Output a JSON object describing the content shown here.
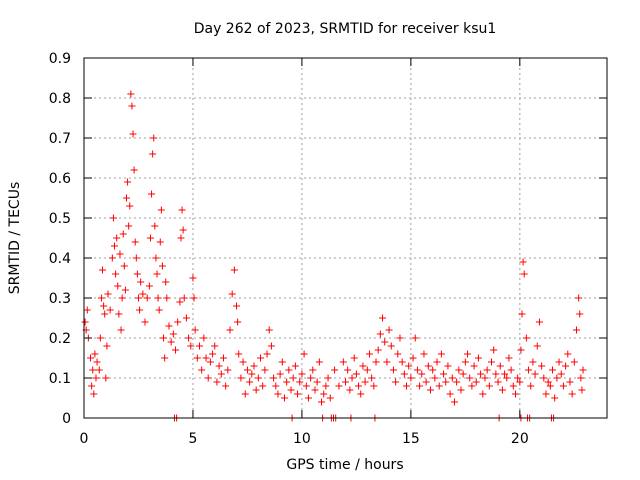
{
  "chart_data": {
    "type": "scatter",
    "title": "Day 262 of 2023, SRMTID for receiver ksu1",
    "xlabel": "GPS time / hours",
    "ylabel": "SRMTID / TECUs",
    "xlim": [
      0,
      24
    ],
    "ylim": [
      0,
      0.9
    ],
    "xticks": [
      0,
      5,
      10,
      15,
      20
    ],
    "yticks": [
      0,
      0.1,
      0.2,
      0.3,
      0.4,
      0.5,
      0.6,
      0.7,
      0.8,
      0.9
    ],
    "grid": true,
    "marker": "+",
    "color": "#ff0000",
    "series": [
      {
        "name": "SRMTID",
        "points": [
          [
            0.05,
            0.24
          ],
          [
            0.1,
            0.22
          ],
          [
            0.15,
            0.27
          ],
          [
            0.2,
            0.2
          ],
          [
            0.3,
            0.15
          ],
          [
            0.35,
            0.08
          ],
          [
            0.4,
            0.12
          ],
          [
            0.45,
            0.06
          ],
          [
            0.5,
            0.16
          ],
          [
            0.55,
            0.1
          ],
          [
            0.6,
            0.14
          ],
          [
            0.7,
            0.12
          ],
          [
            0.75,
            0.2
          ],
          [
            0.8,
            0.3
          ],
          [
            0.85,
            0.37
          ],
          [
            0.9,
            0.28
          ],
          [
            0.95,
            0.26
          ],
          [
            1.0,
            0.1
          ],
          [
            1.05,
            0.18
          ],
          [
            1.1,
            0.31
          ],
          [
            1.2,
            0.27
          ],
          [
            1.3,
            0.4
          ],
          [
            1.35,
            0.5
          ],
          [
            1.4,
            0.43
          ],
          [
            1.45,
            0.36
          ],
          [
            1.5,
            0.45
          ],
          [
            1.55,
            0.33
          ],
          [
            1.6,
            0.26
          ],
          [
            1.65,
            0.41
          ],
          [
            1.7,
            0.22
          ],
          [
            1.75,
            0.3
          ],
          [
            1.8,
            0.46
          ],
          [
            1.85,
            0.38
          ],
          [
            1.9,
            0.32
          ],
          [
            1.95,
            0.55
          ],
          [
            2.0,
            0.59
          ],
          [
            2.05,
            0.48
          ],
          [
            2.1,
            0.53
          ],
          [
            2.15,
            0.81
          ],
          [
            2.2,
            0.78
          ],
          [
            2.25,
            0.71
          ],
          [
            2.3,
            0.62
          ],
          [
            2.35,
            0.44
          ],
          [
            2.4,
            0.4
          ],
          [
            2.45,
            0.36
          ],
          [
            2.5,
            0.3
          ],
          [
            2.55,
            0.27
          ],
          [
            2.6,
            0.34
          ],
          [
            2.7,
            0.31
          ],
          [
            2.8,
            0.24
          ],
          [
            2.9,
            0.3
          ],
          [
            3.0,
            0.33
          ],
          [
            3.05,
            0.45
          ],
          [
            3.1,
            0.56
          ],
          [
            3.15,
            0.66
          ],
          [
            3.2,
            0.7
          ],
          [
            3.25,
            0.48
          ],
          [
            3.3,
            0.4
          ],
          [
            3.35,
            0.36
          ],
          [
            3.4,
            0.3
          ],
          [
            3.45,
            0.27
          ],
          [
            3.5,
            0.44
          ],
          [
            3.55,
            0.52
          ],
          [
            3.6,
            0.38
          ],
          [
            3.65,
            0.2
          ],
          [
            3.7,
            0.15
          ],
          [
            3.75,
            0.34
          ],
          [
            3.8,
            0.3
          ],
          [
            3.9,
            0.23
          ],
          [
            4.0,
            0.19
          ],
          [
            4.1,
            0.21
          ],
          [
            4.2,
            0.17
          ],
          [
            4.3,
            0.24
          ],
          [
            4.4,
            0.29
          ],
          [
            4.45,
            0.45
          ],
          [
            4.5,
            0.52
          ],
          [
            4.55,
            0.47
          ],
          [
            4.6,
            0.3
          ],
          [
            4.7,
            0.25
          ],
          [
            4.8,
            0.2
          ],
          [
            4.9,
            0.18
          ],
          [
            5.0,
            0.35
          ],
          [
            5.05,
            0.3
          ],
          [
            5.1,
            0.22
          ],
          [
            5.2,
            0.15
          ],
          [
            5.3,
            0.18
          ],
          [
            5.4,
            0.12
          ],
          [
            5.5,
            0.2
          ],
          [
            5.6,
            0.15
          ],
          [
            5.7,
            0.1
          ],
          [
            5.8,
            0.14
          ],
          [
            5.9,
            0.16
          ],
          [
            6.0,
            0.18
          ],
          [
            6.1,
            0.09
          ],
          [
            6.2,
            0.13
          ],
          [
            6.3,
            0.11
          ],
          [
            6.4,
            0.15
          ],
          [
            6.5,
            0.08
          ],
          [
            6.6,
            0.12
          ],
          [
            6.7,
            0.22
          ],
          [
            6.8,
            0.31
          ],
          [
            6.9,
            0.37
          ],
          [
            7.0,
            0.28
          ],
          [
            7.05,
            0.24
          ],
          [
            7.1,
            0.16
          ],
          [
            7.2,
            0.1
          ],
          [
            7.3,
            0.14
          ],
          [
            7.4,
            0.06
          ],
          [
            7.5,
            0.12
          ],
          [
            7.6,
            0.09
          ],
          [
            7.7,
            0.11
          ],
          [
            7.8,
            0.13
          ],
          [
            7.9,
            0.07
          ],
          [
            8.0,
            0.1
          ],
          [
            8.1,
            0.15
          ],
          [
            8.2,
            0.08
          ],
          [
            8.3,
            0.12
          ],
          [
            8.4,
            0.16
          ],
          [
            8.5,
            0.22
          ],
          [
            8.6,
            0.18
          ],
          [
            8.7,
            0.1
          ],
          [
            8.8,
            0.08
          ],
          [
            8.9,
            0.06
          ],
          [
            9.0,
            0.11
          ],
          [
            9.1,
            0.14
          ],
          [
            9.2,
            0.05
          ],
          [
            9.3,
            0.09
          ],
          [
            9.4,
            0.12
          ],
          [
            9.5,
            0.07
          ],
          [
            9.6,
            0.1
          ],
          [
            9.7,
            0.13
          ],
          [
            9.8,
            0.06
          ],
          [
            9.9,
            0.09
          ],
          [
            10.0,
            0.11
          ],
          [
            10.1,
            0.16
          ],
          [
            10.2,
            0.08
          ],
          [
            10.3,
            0.05
          ],
          [
            10.4,
            0.1
          ],
          [
            10.5,
            0.12
          ],
          [
            10.6,
            0.07
          ],
          [
            10.7,
            0.09
          ],
          [
            10.8,
            0.14
          ],
          [
            10.9,
            0.04
          ],
          [
            11.0,
            0.06
          ],
          [
            11.1,
            0.08
          ],
          [
            11.2,
            0.1
          ],
          [
            11.3,
            0.05
          ],
          [
            11.5,
            0.12
          ],
          [
            11.7,
            0.08
          ],
          [
            11.9,
            0.14
          ],
          [
            12.0,
            0.09
          ],
          [
            12.1,
            0.12
          ],
          [
            12.2,
            0.07
          ],
          [
            12.3,
            0.1
          ],
          [
            12.4,
            0.15
          ],
          [
            12.5,
            0.11
          ],
          [
            12.6,
            0.08
          ],
          [
            12.7,
            0.06
          ],
          [
            12.8,
            0.13
          ],
          [
            12.9,
            0.09
          ],
          [
            13.0,
            0.12
          ],
          [
            13.1,
            0.16
          ],
          [
            13.2,
            0.1
          ],
          [
            13.3,
            0.08
          ],
          [
            13.4,
            0.14
          ],
          [
            13.5,
            0.17
          ],
          [
            13.6,
            0.21
          ],
          [
            13.7,
            0.25
          ],
          [
            13.8,
            0.19
          ],
          [
            13.9,
            0.14
          ],
          [
            14.0,
            0.22
          ],
          [
            14.1,
            0.18
          ],
          [
            14.2,
            0.12
          ],
          [
            14.3,
            0.09
          ],
          [
            14.4,
            0.16
          ],
          [
            14.5,
            0.2
          ],
          [
            14.6,
            0.14
          ],
          [
            14.7,
            0.11
          ],
          [
            14.8,
            0.08
          ],
          [
            14.9,
            0.13
          ],
          [
            15.0,
            0.1
          ],
          [
            15.1,
            0.15
          ],
          [
            15.2,
            0.2
          ],
          [
            15.3,
            0.12
          ],
          [
            15.4,
            0.08
          ],
          [
            15.5,
            0.11
          ],
          [
            15.6,
            0.16
          ],
          [
            15.7,
            0.09
          ],
          [
            15.8,
            0.13
          ],
          [
            15.9,
            0.07
          ],
          [
            16.0,
            0.12
          ],
          [
            16.1,
            0.1
          ],
          [
            16.2,
            0.14
          ],
          [
            16.3,
            0.08
          ],
          [
            16.4,
            0.16
          ],
          [
            16.5,
            0.11
          ],
          [
            16.6,
            0.09
          ],
          [
            16.7,
            0.13
          ],
          [
            16.8,
            0.06
          ],
          [
            16.9,
            0.1
          ],
          [
            17.0,
            0.04
          ],
          [
            17.1,
            0.09
          ],
          [
            17.2,
            0.12
          ],
          [
            17.3,
            0.07
          ],
          [
            17.4,
            0.11
          ],
          [
            17.5,
            0.14
          ],
          [
            17.6,
            0.16
          ],
          [
            17.7,
            0.1
          ],
          [
            17.8,
            0.08
          ],
          [
            17.9,
            0.13
          ],
          [
            18.0,
            0.09
          ],
          [
            18.1,
            0.15
          ],
          [
            18.2,
            0.11
          ],
          [
            18.3,
            0.06
          ],
          [
            18.4,
            0.1
          ],
          [
            18.5,
            0.12
          ],
          [
            18.6,
            0.08
          ],
          [
            18.7,
            0.14
          ],
          [
            18.8,
            0.17
          ],
          [
            18.9,
            0.11
          ],
          [
            19.0,
            0.09
          ],
          [
            19.1,
            0.13
          ],
          [
            19.2,
            0.07
          ],
          [
            19.3,
            0.11
          ],
          [
            19.4,
            0.1
          ],
          [
            19.5,
            0.15
          ],
          [
            19.6,
            0.12
          ],
          [
            19.7,
            0.08
          ],
          [
            19.8,
            0.06
          ],
          [
            19.9,
            0.1
          ],
          [
            20.0,
            0.09
          ],
          [
            20.05,
            0.17
          ],
          [
            20.1,
            0.26
          ],
          [
            20.15,
            0.39
          ],
          [
            20.2,
            0.36
          ],
          [
            20.3,
            0.2
          ],
          [
            20.4,
            0.12
          ],
          [
            20.5,
            0.08
          ],
          [
            20.6,
            0.14
          ],
          [
            20.7,
            0.11
          ],
          [
            20.8,
            0.18
          ],
          [
            20.9,
            0.24
          ],
          [
            21.0,
            0.13
          ],
          [
            21.1,
            0.1
          ],
          [
            21.2,
            0.06
          ],
          [
            21.3,
            0.09
          ],
          [
            21.4,
            0.08
          ],
          [
            21.5,
            0.12
          ],
          [
            21.6,
            0.05
          ],
          [
            21.7,
            0.1
          ],
          [
            21.8,
            0.14
          ],
          [
            21.9,
            0.11
          ],
          [
            22.0,
            0.08
          ],
          [
            22.1,
            0.13
          ],
          [
            22.2,
            0.16
          ],
          [
            22.3,
            0.09
          ],
          [
            22.4,
            0.06
          ],
          [
            22.5,
            0.14
          ],
          [
            22.6,
            0.22
          ],
          [
            22.7,
            0.3
          ],
          [
            22.75,
            0.26
          ],
          [
            22.8,
            0.1
          ],
          [
            22.85,
            0.07
          ],
          [
            22.9,
            0.12
          ],
          [
            4.15,
            0.0
          ],
          [
            4.25,
            0.0
          ],
          [
            9.55,
            0.0
          ],
          [
            10.95,
            0.0
          ],
          [
            11.35,
            0.0
          ],
          [
            11.45,
            0.0
          ],
          [
            11.55,
            0.0
          ],
          [
            12.25,
            0.0
          ],
          [
            13.35,
            0.0
          ],
          [
            19.05,
            0.0
          ],
          [
            20.05,
            0.0
          ],
          [
            20.35,
            0.0
          ],
          [
            20.45,
            0.0
          ],
          [
            21.45,
            0.0
          ],
          [
            21.55,
            0.0
          ]
        ]
      }
    ]
  }
}
